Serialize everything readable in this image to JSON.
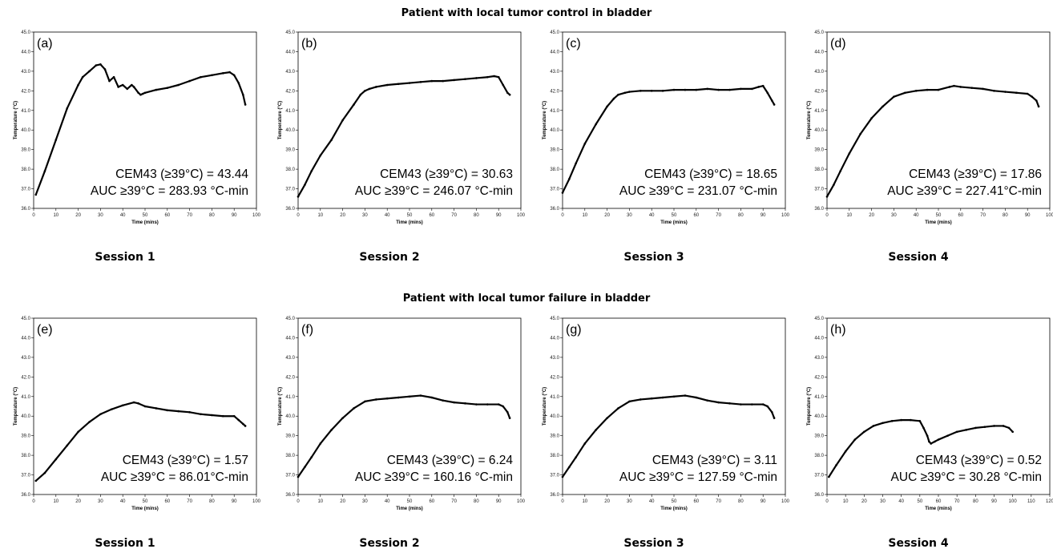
{
  "row_titles": [
    "Patient with local tumor control in bladder",
    "Patient with local tumor failure in bladder"
  ],
  "chart_data": [
    {
      "type": "scatter",
      "panel": "(a)",
      "session": "Session 1",
      "xlabel": "Time (mins)",
      "ylabel": "Temperature (°C)",
      "xlim": [
        0,
        100
      ],
      "ylim": [
        36,
        45
      ],
      "xticks": [
        0,
        10,
        20,
        30,
        40,
        50,
        60,
        70,
        80,
        90,
        100
      ],
      "yticks": [
        36,
        37,
        38,
        39,
        40,
        41,
        42,
        43,
        44,
        45
      ],
      "cem43": "CEM43 (≥39°C) = 43.44",
      "auc": "AUC ≥39°C = 283.93 °C-min",
      "x": [
        1,
        5,
        10,
        15,
        20,
        22,
        25,
        28,
        30,
        32,
        34,
        36,
        38,
        40,
        42,
        44,
        45,
        47,
        48,
        49,
        50,
        55,
        60,
        65,
        70,
        75,
        80,
        85,
        88,
        90,
        92,
        94,
        95
      ],
      "y": [
        36.7,
        37.9,
        39.5,
        41.1,
        42.3,
        42.7,
        43.0,
        43.3,
        43.35,
        43.1,
        42.5,
        42.7,
        42.2,
        42.3,
        42.1,
        42.3,
        42.2,
        41.9,
        41.8,
        41.85,
        41.9,
        42.05,
        42.15,
        42.3,
        42.5,
        42.7,
        42.8,
        42.9,
        42.95,
        42.8,
        42.4,
        41.8,
        41.3
      ]
    },
    {
      "type": "scatter",
      "panel": "(b)",
      "session": "Session 2",
      "xlabel": "Time (mins)",
      "ylabel": "Temperature (°C)",
      "xlim": [
        0,
        100
      ],
      "ylim": [
        36,
        45
      ],
      "xticks": [
        0,
        10,
        20,
        30,
        40,
        50,
        60,
        70,
        80,
        90,
        100
      ],
      "yticks": [
        36,
        37,
        38,
        39,
        40,
        41,
        42,
        43,
        44,
        45
      ],
      "cem43": "CEM43 (≥39°C) = 30.63",
      "auc": "AUC ≥39°C = 246.07 °C-min",
      "x": [
        0,
        3,
        6,
        10,
        15,
        20,
        25,
        28,
        30,
        32,
        35,
        40,
        45,
        50,
        55,
        60,
        65,
        70,
        75,
        80,
        85,
        88,
        90,
        92,
        94,
        95
      ],
      "y": [
        36.6,
        37.2,
        37.9,
        38.7,
        39.5,
        40.5,
        41.3,
        41.8,
        42.0,
        42.1,
        42.2,
        42.3,
        42.35,
        42.4,
        42.45,
        42.5,
        42.5,
        42.55,
        42.6,
        42.65,
        42.7,
        42.75,
        42.7,
        42.3,
        41.9,
        41.8
      ]
    },
    {
      "type": "scatter",
      "panel": "(c)",
      "session": "Session 3",
      "xlabel": "Time (mins)",
      "ylabel": "Temperature (°C)",
      "xlim": [
        0,
        100
      ],
      "ylim": [
        36,
        45
      ],
      "xticks": [
        0,
        10,
        20,
        30,
        40,
        50,
        60,
        70,
        80,
        90,
        100
      ],
      "yticks": [
        36,
        37,
        38,
        39,
        40,
        41,
        42,
        43,
        44,
        45
      ],
      "cem43": "CEM43 (≥39°C) = 18.65",
      "auc": "AUC ≥39°C = 231.07 °C-min",
      "x": [
        0,
        3,
        6,
        10,
        15,
        20,
        23,
        25,
        28,
        30,
        35,
        40,
        45,
        50,
        55,
        60,
        65,
        70,
        75,
        80,
        85,
        88,
        90,
        92,
        94,
        95
      ],
      "y": [
        36.8,
        37.5,
        38.3,
        39.3,
        40.3,
        41.2,
        41.6,
        41.8,
        41.9,
        41.95,
        42.0,
        42.0,
        42.0,
        42.05,
        42.05,
        42.05,
        42.1,
        42.05,
        42.05,
        42.1,
        42.1,
        42.2,
        42.25,
        41.9,
        41.5,
        41.3
      ]
    },
    {
      "type": "scatter",
      "panel": "(d)",
      "session": "Session 4",
      "xlabel": "Time (mins)",
      "ylabel": "Temperature (°C)",
      "xlim": [
        0,
        100
      ],
      "ylim": [
        36,
        45
      ],
      "xticks": [
        0,
        10,
        20,
        30,
        40,
        50,
        60,
        70,
        80,
        90,
        100
      ],
      "yticks": [
        36,
        37,
        38,
        39,
        40,
        41,
        42,
        43,
        44,
        45
      ],
      "cem43": "CEM43 (≥39°C) = 17.86",
      "auc": "AUC ≥39°C = 227.41°C-min",
      "x": [
        0,
        3,
        6,
        10,
        15,
        20,
        25,
        30,
        35,
        40,
        45,
        50,
        55,
        57,
        60,
        65,
        70,
        75,
        80,
        85,
        90,
        92,
        94,
        95
      ],
      "y": [
        36.6,
        37.2,
        37.9,
        38.8,
        39.8,
        40.6,
        41.2,
        41.7,
        41.9,
        42.0,
        42.05,
        42.05,
        42.2,
        42.25,
        42.2,
        42.15,
        42.1,
        42.0,
        41.95,
        41.9,
        41.85,
        41.7,
        41.5,
        41.2
      ]
    },
    {
      "type": "scatter",
      "panel": "(e)",
      "session": "Session 1",
      "xlabel": "Time (mins)",
      "ylabel": "Temperature (°C)",
      "xlim": [
        0,
        100
      ],
      "ylim": [
        36,
        45
      ],
      "xticks": [
        0,
        10,
        20,
        30,
        40,
        50,
        60,
        70,
        80,
        90,
        100
      ],
      "yticks": [
        36,
        37,
        38,
        39,
        40,
        41,
        42,
        43,
        44,
        45
      ],
      "cem43": "CEM43 (≥39°C) = 1.57",
      "auc": "AUC ≥39°C = 86.01°C-min",
      "x": [
        1,
        5,
        10,
        15,
        20,
        25,
        30,
        35,
        40,
        45,
        47,
        50,
        55,
        60,
        65,
        70,
        75,
        80,
        85,
        90,
        92,
        94,
        95
      ],
      "y": [
        36.7,
        37.1,
        37.8,
        38.5,
        39.2,
        39.7,
        40.1,
        40.35,
        40.55,
        40.7,
        40.65,
        40.5,
        40.4,
        40.3,
        40.25,
        40.2,
        40.1,
        40.05,
        40.0,
        40.0,
        39.8,
        39.6,
        39.5
      ]
    },
    {
      "type": "scatter",
      "panel": "(f)",
      "session": "Session 2",
      "xlabel": "Time (mins)",
      "ylabel": "Temperature (°C)",
      "xlim": [
        0,
        100
      ],
      "ylim": [
        36,
        45
      ],
      "xticks": [
        0,
        10,
        20,
        30,
        40,
        50,
        60,
        70,
        80,
        90,
        100
      ],
      "yticks": [
        36,
        37,
        38,
        39,
        40,
        41,
        42,
        43,
        44,
        45
      ],
      "cem43": "CEM43 (≥39°C) = 6.24",
      "auc": "AUC ≥39°C = 160.16 °C-min",
      "x": [
        0,
        3,
        6,
        10,
        15,
        20,
        25,
        30,
        35,
        40,
        45,
        50,
        55,
        60,
        65,
        70,
        75,
        80,
        85,
        90,
        92,
        94,
        95
      ],
      "y": [
        36.9,
        37.4,
        37.9,
        38.6,
        39.3,
        39.9,
        40.4,
        40.75,
        40.85,
        40.9,
        40.95,
        41.0,
        41.05,
        40.95,
        40.8,
        40.7,
        40.65,
        40.6,
        40.6,
        40.6,
        40.5,
        40.2,
        39.9
      ]
    },
    {
      "type": "scatter",
      "panel": "(g)",
      "session": "Session 3",
      "xlabel": "Time (mins)",
      "ylabel": "Temperature (°C)",
      "xlim": [
        0,
        100
      ],
      "ylim": [
        36,
        45
      ],
      "xticks": [
        0,
        10,
        20,
        30,
        40,
        50,
        60,
        70,
        80,
        90,
        100
      ],
      "yticks": [
        36,
        37,
        38,
        39,
        40,
        41,
        42,
        43,
        44,
        45
      ],
      "cem43": "CEM43 (≥39°C) = 3.11",
      "auc": "AUC ≥39°C = 127.59 °C-min",
      "x": [
        0,
        3,
        6,
        10,
        15,
        20,
        25,
        30,
        35,
        40,
        45,
        50,
        55,
        60,
        65,
        70,
        75,
        80,
        85,
        90,
        92,
        94,
        95
      ],
      "y": [
        36.9,
        37.4,
        37.9,
        38.6,
        39.3,
        39.9,
        40.4,
        40.75,
        40.85,
        40.9,
        40.95,
        41.0,
        41.05,
        40.95,
        40.8,
        40.7,
        40.65,
        40.6,
        40.6,
        40.6,
        40.5,
        40.2,
        39.9
      ]
    },
    {
      "type": "scatter",
      "panel": "(h)",
      "session": "Session 4",
      "xlabel": "Time (mins)",
      "ylabel": "Temperature (°C)",
      "xlim": [
        0,
        120
      ],
      "ylim": [
        36,
        45
      ],
      "xticks": [
        0,
        10,
        20,
        30,
        40,
        50,
        60,
        70,
        80,
        90,
        100,
        110,
        120
      ],
      "yticks": [
        36,
        37,
        38,
        39,
        40,
        41,
        42,
        43,
        44,
        45
      ],
      "cem43": "CEM43 (≥39°C) = 0.52",
      "auc": "AUC ≥39°C = 30.28 °C-min",
      "x": [
        1,
        5,
        10,
        15,
        20,
        25,
        30,
        35,
        40,
        45,
        50,
        52,
        54,
        55,
        56,
        58,
        60,
        65,
        70,
        75,
        80,
        85,
        90,
        95,
        98,
        100
      ],
      "y": [
        36.9,
        37.5,
        38.2,
        38.8,
        39.2,
        39.5,
        39.65,
        39.75,
        39.8,
        39.8,
        39.75,
        39.4,
        39.0,
        38.7,
        38.6,
        38.7,
        38.8,
        39.0,
        39.2,
        39.3,
        39.4,
        39.45,
        39.5,
        39.5,
        39.4,
        39.2
      ]
    }
  ]
}
